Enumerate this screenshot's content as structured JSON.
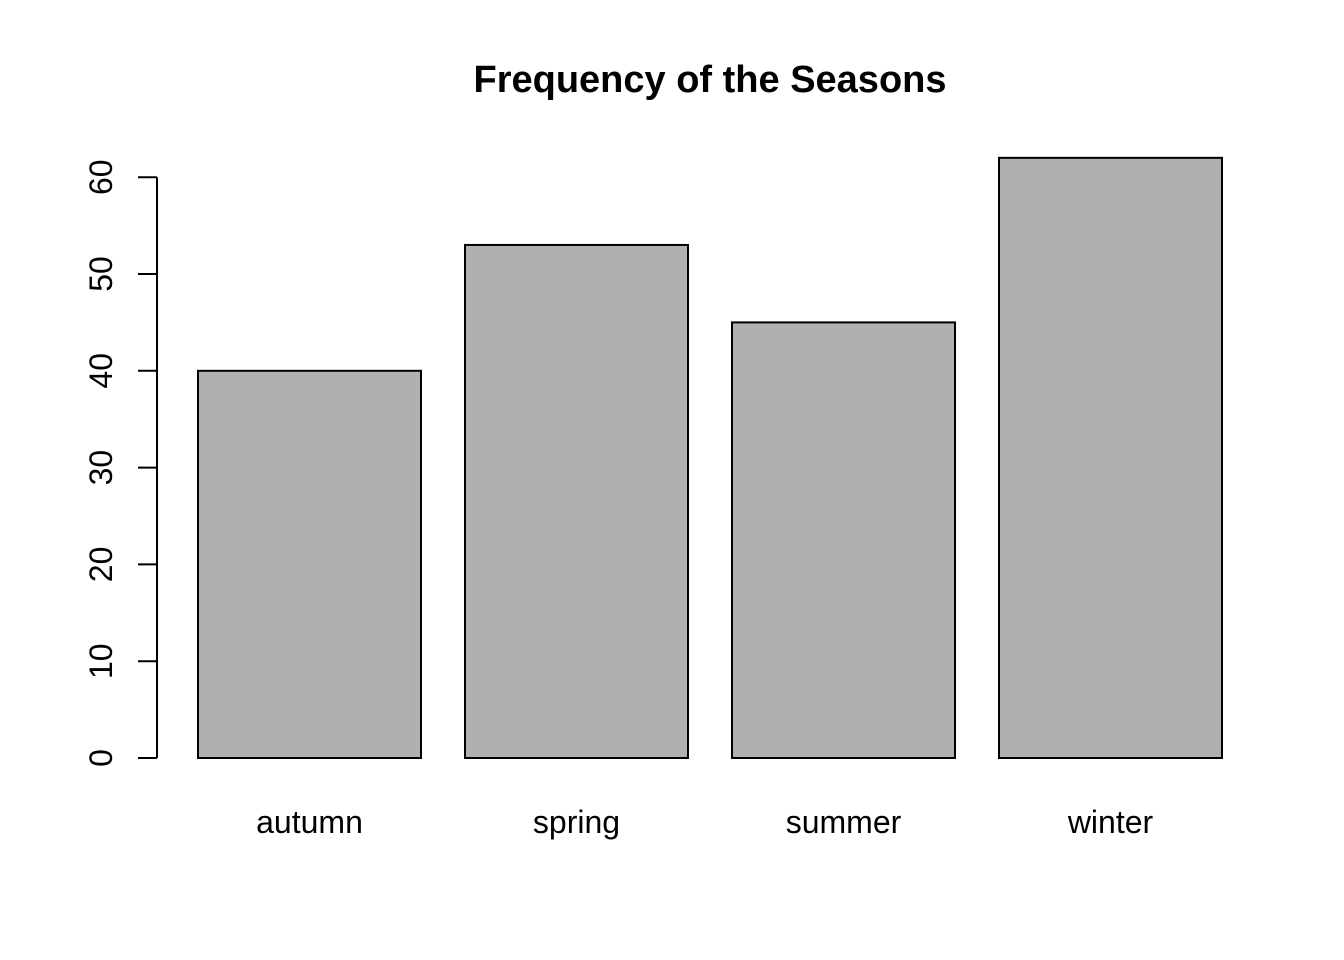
{
  "chart_data": {
    "type": "bar",
    "title": "Frequency of the Seasons",
    "xlabel": "",
    "ylabel": "",
    "categories": [
      "autumn",
      "spring",
      "summer",
      "winter"
    ],
    "values": [
      40,
      53,
      45,
      62
    ],
    "ylim": [
      0,
      62
    ],
    "yticks": [
      0,
      10,
      20,
      30,
      40,
      50,
      60
    ],
    "ytick_labels": [
      "0",
      "10",
      "20",
      "30",
      "40",
      "50",
      "60"
    ],
    "grid": false,
    "legend": "none",
    "colors": {
      "bar_fill": "#b0b0b0",
      "bar_stroke": "#000000",
      "background": "#ffffff"
    }
  }
}
